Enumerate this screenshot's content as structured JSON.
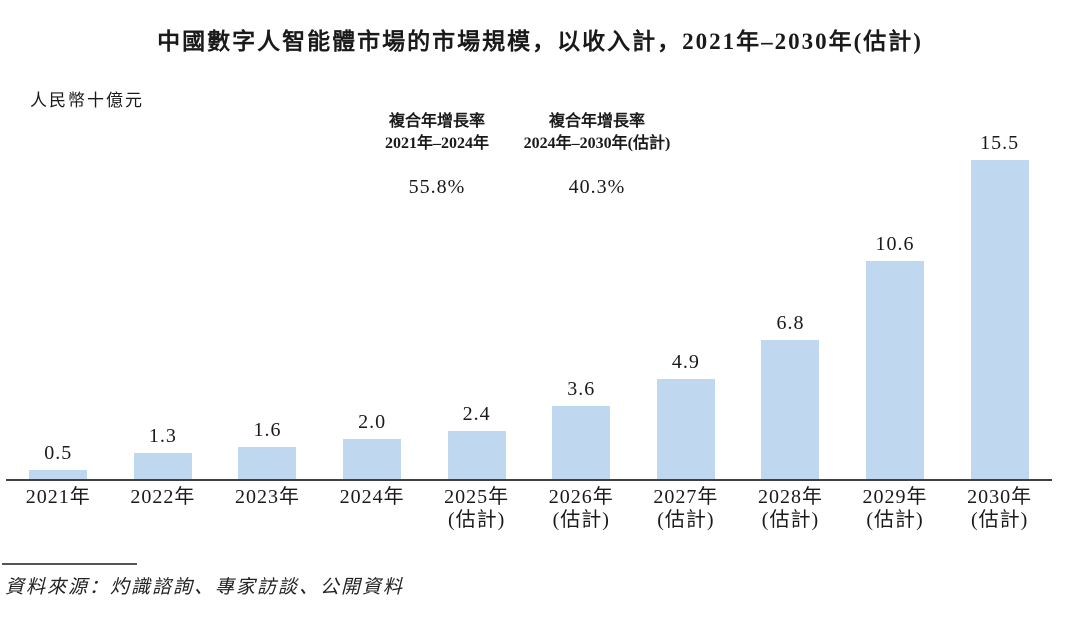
{
  "chart_data": {
    "type": "bar",
    "title": "中國數字人智能體市場的市場規模，以收入計，2021年–2030年(估計)",
    "unit_label": "人民幣十億元",
    "categories": [
      "2021年",
      "2022年",
      "2023年",
      "2024年",
      "2025年\n(估計)",
      "2026年\n(估計)",
      "2027年\n(估計)",
      "2028年\n(估計)",
      "2029年\n(估計)",
      "2030年\n(估計)"
    ],
    "values": [
      0.5,
      1.3,
      1.6,
      2.0,
      2.4,
      3.6,
      4.9,
      6.8,
      10.6,
      15.5
    ],
    "value_labels": [
      "0.5",
      "1.3",
      "1.6",
      "2.0",
      "2.4",
      "3.6",
      "4.9",
      "6.8",
      "10.6",
      "15.5"
    ],
    "xlabel": "",
    "ylabel": "人民幣十億元",
    "ylim": [
      0,
      17
    ],
    "grid": false,
    "legend": "none",
    "bar_color": "#BFD8EF",
    "axis_color": "#404040",
    "annotations": [
      {
        "line1": "複合年增長率",
        "line2": "2021年–2024年",
        "value": "55.8%"
      },
      {
        "line1": "複合年增長率",
        "line2": "2024年–2030年(估計)",
        "value": "40.3%"
      }
    ],
    "source": "資料來源：灼識諮詢、專家訪談、公開資料"
  }
}
